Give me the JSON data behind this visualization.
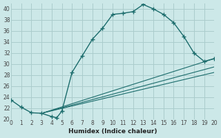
{
  "xlabel": "Humidex (Indice chaleur)",
  "background_color": "#cce8e8",
  "grid_color": "#aacccc",
  "line_color": "#1a6b6b",
  "xlim": [
    0,
    20
  ],
  "ylim": [
    20,
    41
  ],
  "xticks": [
    0,
    1,
    2,
    3,
    4,
    5,
    6,
    7,
    8,
    9,
    10,
    11,
    12,
    13,
    14,
    15,
    16,
    17,
    18,
    19,
    20
  ],
  "yticks": [
    20,
    22,
    24,
    26,
    28,
    30,
    32,
    34,
    36,
    38,
    40
  ],
  "main_x": [
    0,
    1,
    2,
    3,
    4,
    4.5,
    5,
    6,
    7,
    8,
    9,
    10,
    11,
    12,
    13,
    14,
    15,
    16,
    17,
    18,
    19,
    20
  ],
  "main_y": [
    23.5,
    22.2,
    21.2,
    21.1,
    20.5,
    20.3,
    21.5,
    28.5,
    31.5,
    34.5,
    36.5,
    39.0,
    39.2,
    39.5,
    40.8,
    40.0,
    39.0,
    37.5,
    35.0,
    32.0,
    30.5,
    31.0
  ],
  "ref_lines": [
    {
      "x": [
        3.2,
        20
      ],
      "y": [
        21.2,
        31.0
      ]
    },
    {
      "x": [
        3.2,
        20
      ],
      "y": [
        21.2,
        29.5
      ]
    },
    {
      "x": [
        3.2,
        20
      ],
      "y": [
        21.2,
        28.5
      ]
    }
  ]
}
